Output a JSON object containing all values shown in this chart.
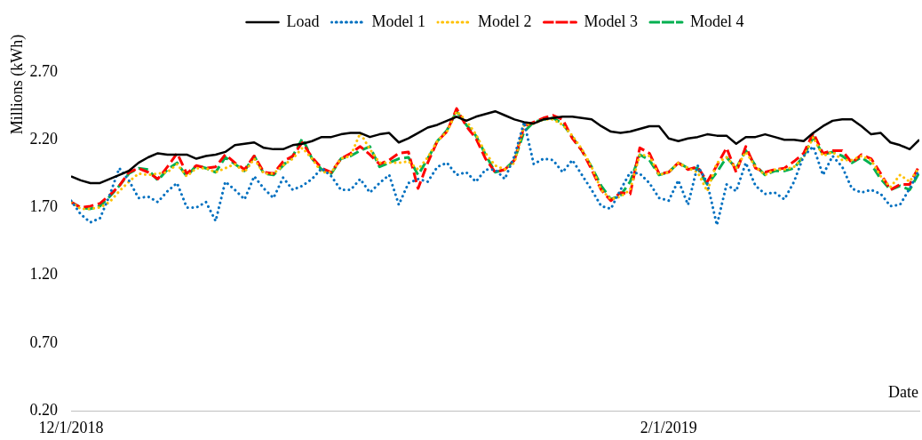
{
  "chart_data": {
    "type": "line",
    "xlabel": "Date",
    "ylabel": "Millions (kWh)",
    "x": [
      "2018-12-01",
      "2018-12-02",
      "2018-12-03",
      "2018-12-04",
      "2018-12-05",
      "2018-12-06",
      "2018-12-07",
      "2018-12-08",
      "2018-12-09",
      "2018-12-10",
      "2018-12-11",
      "2018-12-12",
      "2018-12-13",
      "2018-12-14",
      "2018-12-15",
      "2018-12-16",
      "2018-12-17",
      "2018-12-18",
      "2018-12-19",
      "2018-12-20",
      "2018-12-21",
      "2018-12-22",
      "2018-12-23",
      "2018-12-24",
      "2018-12-25",
      "2018-12-26",
      "2018-12-27",
      "2018-12-28",
      "2018-12-29",
      "2018-12-30",
      "2018-12-31",
      "2019-01-01",
      "2019-01-02",
      "2019-01-03",
      "2019-01-04",
      "2019-01-05",
      "2019-01-06",
      "2019-01-07",
      "2019-01-08",
      "2019-01-09",
      "2019-01-10",
      "2019-01-11",
      "2019-01-12",
      "2019-01-13",
      "2019-01-14",
      "2019-01-15",
      "2019-01-16",
      "2019-01-17",
      "2019-01-18",
      "2019-01-19",
      "2019-01-20",
      "2019-01-21",
      "2019-01-22",
      "2019-01-23",
      "2019-01-24",
      "2019-01-25",
      "2019-01-26",
      "2019-01-27",
      "2019-01-28",
      "2019-01-29",
      "2019-01-30",
      "2019-01-31",
      "2019-02-01",
      "2019-02-02",
      "2019-02-03",
      "2019-02-04",
      "2019-02-05",
      "2019-02-06",
      "2019-02-07",
      "2019-02-08",
      "2019-02-09",
      "2019-02-10",
      "2019-02-11",
      "2019-02-12",
      "2019-02-13",
      "2019-02-14",
      "2019-02-15",
      "2019-02-16",
      "2019-02-17",
      "2019-02-18",
      "2019-02-19",
      "2019-02-20",
      "2019-02-21",
      "2019-02-22",
      "2019-02-23",
      "2019-02-24",
      "2019-02-25",
      "2019-02-26",
      "2019-02-27"
    ],
    "xlim": [
      "2018-12-01",
      "2019-02-27"
    ],
    "xticks": [
      {
        "value": "2018-12-01",
        "label": "12/1/2018"
      },
      {
        "value": "2019-02-01",
        "label": "2/1/2019"
      }
    ],
    "ylim": [
      0.2,
      2.7
    ],
    "yticks": [
      {
        "value": 0.2,
        "label": "0.20"
      },
      {
        "value": 0.7,
        "label": "0.70"
      },
      {
        "value": 1.2,
        "label": "1.20"
      },
      {
        "value": 1.7,
        "label": "1.70"
      },
      {
        "value": 2.2,
        "label": "2.20"
      },
      {
        "value": 2.7,
        "label": "2.70"
      }
    ],
    "grid": false,
    "legend": "top",
    "marker": "none",
    "series": [
      {
        "name": "Load",
        "color": "#000000",
        "line_style": "solid",
        "values": [
          1.93,
          1.9,
          1.88,
          1.88,
          1.91,
          1.94,
          1.97,
          2.03,
          2.07,
          2.1,
          2.09,
          2.09,
          2.09,
          2.06,
          2.08,
          2.09,
          2.11,
          2.16,
          2.17,
          2.18,
          2.14,
          2.13,
          2.13,
          2.16,
          2.17,
          2.19,
          2.22,
          2.22,
          2.24,
          2.25,
          2.25,
          2.22,
          2.24,
          2.25,
          2.18,
          2.21,
          2.25,
          2.29,
          2.31,
          2.34,
          2.37,
          2.34,
          2.37,
          2.39,
          2.41,
          2.38,
          2.35,
          2.33,
          2.32,
          2.35,
          2.36,
          2.37,
          2.37,
          2.36,
          2.35,
          2.3,
          2.26,
          2.25,
          2.26,
          2.28,
          2.3,
          2.3,
          2.21,
          2.19,
          2.21,
          2.22,
          2.24,
          2.23,
          2.23,
          2.17,
          2.22,
          2.22,
          2.24,
          2.22,
          2.2,
          2.2,
          2.19,
          2.25,
          2.3,
          2.34,
          2.35,
          2.35,
          2.3,
          2.24,
          2.25,
          2.18,
          2.16,
          2.13,
          2.2
        ]
      },
      {
        "name": "Model 1",
        "color": "#0070c0",
        "line_style": "dotted",
        "values": [
          1.75,
          1.65,
          1.59,
          1.62,
          1.79,
          1.99,
          1.9,
          1.77,
          1.78,
          1.74,
          1.82,
          1.88,
          1.7,
          1.7,
          1.74,
          1.6,
          1.89,
          1.83,
          1.76,
          1.93,
          1.84,
          1.77,
          1.92,
          1.83,
          1.86,
          1.91,
          1.99,
          1.93,
          1.83,
          1.83,
          1.91,
          1.81,
          1.88,
          1.94,
          1.72,
          1.88,
          1.91,
          1.89,
          2.0,
          2.03,
          1.94,
          1.96,
          1.89,
          1.98,
          1.98,
          1.91,
          2.08,
          2.33,
          2.02,
          2.06,
          2.05,
          1.96,
          2.05,
          1.94,
          1.83,
          1.71,
          1.69,
          1.83,
          1.96,
          1.95,
          1.88,
          1.77,
          1.75,
          1.9,
          1.72,
          2.01,
          1.88,
          1.57,
          1.87,
          1.82,
          2.03,
          1.86,
          1.8,
          1.81,
          1.76,
          1.89,
          2.08,
          2.15,
          1.94,
          2.08,
          2.0,
          1.84,
          1.81,
          1.83,
          1.8,
          1.71,
          1.72,
          1.84,
          1.98
        ]
      },
      {
        "name": "Model 2",
        "color": "#ffc000",
        "line_style": "dotted",
        "values": [
          1.74,
          1.69,
          1.69,
          1.7,
          1.74,
          1.82,
          1.89,
          1.95,
          1.94,
          1.95,
          1.96,
          2.02,
          1.93,
          1.99,
          1.99,
          1.96,
          1.99,
          2.02,
          1.96,
          2.06,
          1.95,
          1.95,
          2.01,
          2.06,
          2.14,
          2.06,
          1.96,
          1.96,
          2.06,
          2.08,
          2.25,
          2.13,
          2.03,
          2.03,
          2.03,
          2.04,
          1.98,
          2.07,
          2.19,
          2.26,
          2.41,
          2.34,
          2.24,
          2.1,
          2.01,
          1.98,
          2.03,
          2.31,
          2.32,
          2.35,
          2.35,
          2.31,
          2.23,
          2.13,
          2.0,
          1.83,
          1.76,
          1.78,
          1.83,
          2.09,
          2.08,
          1.94,
          1.96,
          2.03,
          1.99,
          1.96,
          1.82,
          2.03,
          2.07,
          1.99,
          2.11,
          2.0,
          1.94,
          1.98,
          1.98,
          2.0,
          2.07,
          2.22,
          2.08,
          2.11,
          2.05,
          2.05,
          2.08,
          2.05,
          1.93,
          1.85,
          1.94,
          1.89,
          2.0
        ]
      },
      {
        "name": "Model 3",
        "color": "#ff0000",
        "line_style": "dashed",
        "values": [
          1.74,
          1.7,
          1.71,
          1.73,
          1.79,
          1.86,
          1.96,
          1.99,
          1.96,
          1.91,
          2.0,
          2.1,
          1.95,
          2.01,
          1.99,
          2.0,
          2.09,
          2.03,
          1.98,
          2.08,
          1.96,
          1.95,
          2.04,
          2.08,
          2.18,
          2.07,
          1.99,
          1.96,
          2.06,
          2.1,
          2.15,
          2.09,
          2.02,
          2.05,
          2.1,
          2.11,
          1.84,
          2.03,
          2.19,
          2.26,
          2.43,
          2.3,
          2.21,
          2.06,
          1.96,
          1.98,
          2.05,
          2.3,
          2.33,
          2.36,
          2.38,
          2.35,
          2.21,
          2.12,
          1.98,
          1.83,
          1.75,
          1.81,
          1.8,
          2.14,
          2.1,
          1.95,
          1.96,
          2.03,
          1.98,
          2.0,
          1.89,
          2.01,
          2.14,
          1.96,
          2.15,
          1.99,
          1.96,
          1.98,
          1.99,
          2.04,
          2.1,
          2.25,
          2.1,
          2.12,
          2.12,
          2.03,
          2.09,
          2.06,
          1.95,
          1.83,
          1.87,
          1.87,
          2.01
        ]
      },
      {
        "name": "Model 4",
        "color": "#00b050",
        "line_style": "dashed",
        "values": [
          1.74,
          1.7,
          1.69,
          1.71,
          1.78,
          1.86,
          1.95,
          1.99,
          1.98,
          1.9,
          1.98,
          2.03,
          1.93,
          2.01,
          1.99,
          1.96,
          2.07,
          2.02,
          1.97,
          2.08,
          1.95,
          1.94,
          2.01,
          2.08,
          2.21,
          2.06,
          1.98,
          1.95,
          2.06,
          2.08,
          2.12,
          2.15,
          2.0,
          2.03,
          2.06,
          2.07,
          1.94,
          2.06,
          2.19,
          2.27,
          2.41,
          2.31,
          2.23,
          2.09,
          1.96,
          1.98,
          2.05,
          2.26,
          2.33,
          2.35,
          2.36,
          2.32,
          2.22,
          2.12,
          2.0,
          1.86,
          1.76,
          1.79,
          1.89,
          2.09,
          2.05,
          1.94,
          1.96,
          2.03,
          1.99,
          1.99,
          1.87,
          1.96,
          2.07,
          1.99,
          2.12,
          2.01,
          1.94,
          1.97,
          1.97,
          1.99,
          2.08,
          2.22,
          2.09,
          2.11,
          2.08,
          2.03,
          2.07,
          2.02,
          1.91,
          1.83,
          1.86,
          1.83,
          1.96
        ]
      }
    ]
  }
}
